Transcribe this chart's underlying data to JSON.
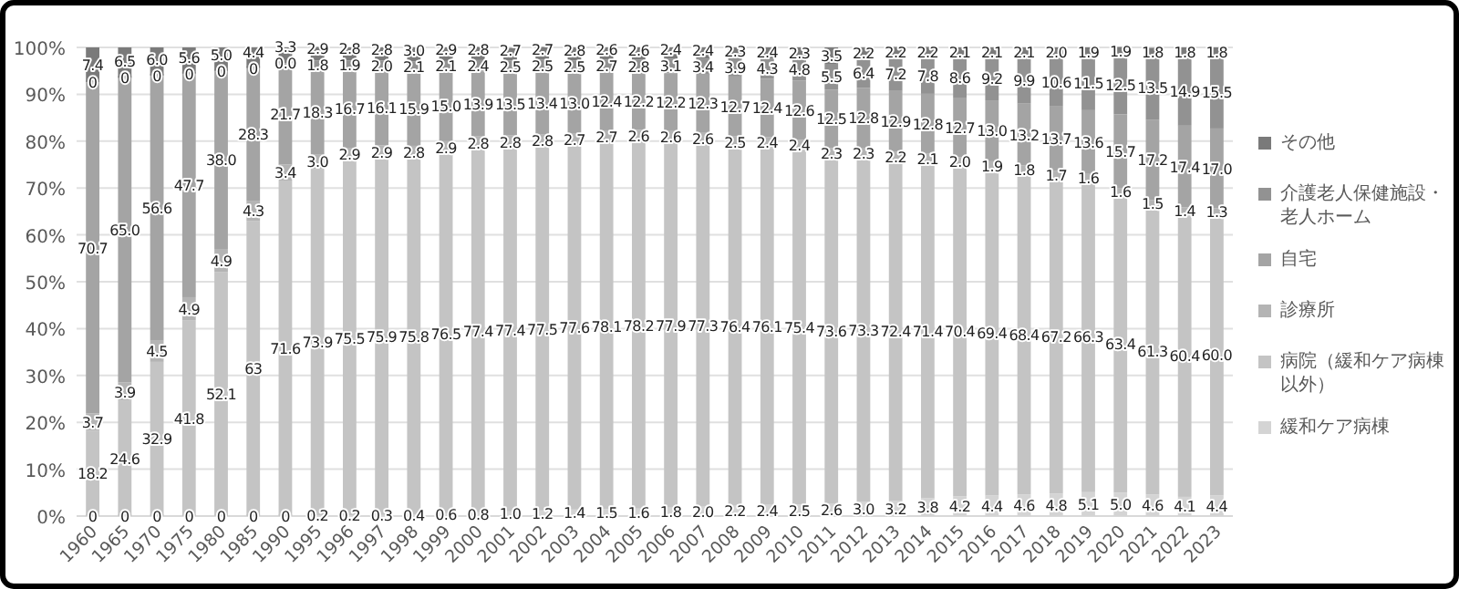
{
  "chart_data": {
    "type": "bar",
    "stacked": true,
    "grid": "y",
    "legend": "right",
    "categories": [
      "1960",
      "1965",
      "1970",
      "1975",
      "1980",
      "1985",
      "1990",
      "1995",
      "1996",
      "1997",
      "1998",
      "1999",
      "2000",
      "2001",
      "2002",
      "2003",
      "2004",
      "2005",
      "2006",
      "2007",
      "2008",
      "2009",
      "2010",
      "2011",
      "2012",
      "2013",
      "2014",
      "2015",
      "2016",
      "2017",
      "2018",
      "2019",
      "2020",
      "2021",
      "2022",
      "2023"
    ],
    "ylim": [
      0,
      100
    ],
    "yticks": [
      {
        "value": 0,
        "label": "0%"
      },
      {
        "value": 10,
        "label": "10%"
      },
      {
        "value": 20,
        "label": "20%"
      },
      {
        "value": 30,
        "label": "30%"
      },
      {
        "value": 40,
        "label": "40%"
      },
      {
        "value": 50,
        "label": "50%"
      },
      {
        "value": 60,
        "label": "60%"
      },
      {
        "value": 70,
        "label": "70%"
      },
      {
        "value": 80,
        "label": "80%"
      },
      {
        "value": 90,
        "label": "90%"
      },
      {
        "value": 100,
        "label": "100%"
      }
    ],
    "series": [
      {
        "name": "緩和ケア病棟",
        "color": "#d4d4d4",
        "values": [
          0,
          0,
          0,
          0,
          0,
          0,
          0,
          0.2,
          0.2,
          0.3,
          0.4,
          0.6,
          0.8,
          1.0,
          1.2,
          1.4,
          1.5,
          1.6,
          1.8,
          2.0,
          2.2,
          2.4,
          2.5,
          2.6,
          3.0,
          3.2,
          3.8,
          4.2,
          4.4,
          4.6,
          4.8,
          5.1,
          5.0,
          4.6,
          4.1,
          4.4
        ],
        "value_labels": [
          "0",
          "0",
          "0",
          "0",
          "0",
          "0",
          "0",
          "0.2",
          "0.2",
          "0.3",
          "0.4",
          "0.6",
          "0.8",
          "1.0",
          "1.2",
          "1.4",
          "1.5",
          "1.6",
          "1.8",
          "2.0",
          "2.2",
          "2.4",
          "2.5",
          "2.6",
          "3.0",
          "3.2",
          "3.8",
          "4.2",
          "4.4",
          "4.6",
          "4.8",
          "5.1",
          "5.0",
          "4.6",
          "4.1",
          "4.4"
        ]
      },
      {
        "name": "病院（緩和ケア病棟以外）",
        "color": "#c4c4c4",
        "values": [
          18.2,
          24.6,
          32.9,
          41.8,
          52.1,
          63,
          71.6,
          73.9,
          75.5,
          75.9,
          75.8,
          76.5,
          77.4,
          77.4,
          77.5,
          77.6,
          78.1,
          78.2,
          77.9,
          77.3,
          76.4,
          76.1,
          75.4,
          73.6,
          73.3,
          72.4,
          71.4,
          70.4,
          69.4,
          68.4,
          67.2,
          66.3,
          63.4,
          61.3,
          60.4,
          60.0
        ],
        "value_labels": [
          "18.2",
          "24.6",
          "32.9",
          "41.8",
          "52.1",
          "63",
          "71.6",
          "73.9",
          "75.5",
          "75.9",
          "75.8",
          "76.5",
          "77.4",
          "77.4",
          "77.5",
          "77.6",
          "78.1",
          "78.2",
          "77.9",
          "77.3",
          "76.4",
          "76.1",
          "75.4",
          "73.6",
          "73.3",
          "72.4",
          "71.4",
          "70.4",
          "69.4",
          "68.4",
          "67.2",
          "66.3",
          "63.4",
          "61.3",
          "60.4",
          "60.0"
        ]
      },
      {
        "name": "診療所",
        "color": "#b4b4b4",
        "values": [
          3.7,
          3.9,
          4.5,
          4.9,
          4.9,
          4.3,
          3.4,
          3.0,
          2.9,
          2.9,
          2.8,
          2.9,
          2.8,
          2.8,
          2.8,
          2.7,
          2.7,
          2.6,
          2.6,
          2.6,
          2.5,
          2.4,
          2.4,
          2.3,
          2.3,
          2.2,
          2.1,
          2.0,
          1.9,
          1.8,
          1.7,
          1.6,
          1.6,
          1.5,
          1.4,
          1.3
        ],
        "value_labels": [
          "3.7",
          "3.9",
          "4.5",
          "4.9",
          "4.9",
          "4.3",
          "3.4",
          "3.0",
          "2.9",
          "2.9",
          "2.8",
          "2.9",
          "2.8",
          "2.8",
          "2.8",
          "2.7",
          "2.7",
          "2.6",
          "2.6",
          "2.6",
          "2.5",
          "2.4",
          "2.4",
          "2.3",
          "2.3",
          "2.2",
          "2.1",
          "2.0",
          "1.9",
          "1.8",
          "1.7",
          "1.6",
          "1.6",
          "1.5",
          "1.4",
          "1.3"
        ]
      },
      {
        "name": "自宅",
        "color": "#a4a4a4",
        "values": [
          70.7,
          65.0,
          56.6,
          47.7,
          38.0,
          28.3,
          21.7,
          18.3,
          16.7,
          16.1,
          15.9,
          15.0,
          13.9,
          13.5,
          13.4,
          13.0,
          12.4,
          12.2,
          12.2,
          12.3,
          12.7,
          12.4,
          12.6,
          12.5,
          12.8,
          12.9,
          12.8,
          12.7,
          13.0,
          13.2,
          13.7,
          13.6,
          15.7,
          17.2,
          17.4,
          17.0
        ],
        "value_labels": [
          "70.7",
          "65.0",
          "56.6",
          "47.7",
          "38.0",
          "28.3",
          "21.7",
          "18.3",
          "16.7",
          "16.1",
          "15.9",
          "15.0",
          "13.9",
          "13.5",
          "13.4",
          "13.0",
          "12.4",
          "12.2",
          "12.2",
          "12.3",
          "12.7",
          "12.4",
          "12.6",
          "12.5",
          "12.8",
          "12.9",
          "12.8",
          "12.7",
          "13.0",
          "13.2",
          "13.7",
          "13.6",
          "15.7",
          "17.2",
          "17.4",
          "17.0"
        ]
      },
      {
        "name": "介護老人保健施設・老人ホーム",
        "color": "#929292",
        "values": [
          0,
          0,
          0,
          0,
          0,
          0,
          0,
          1.8,
          1.9,
          2.0,
          2.1,
          2.1,
          2.4,
          2.5,
          2.5,
          2.5,
          2.7,
          2.8,
          3.1,
          3.4,
          3.9,
          4.3,
          4.8,
          5.5,
          6.4,
          7.2,
          7.8,
          8.6,
          9.2,
          9.9,
          10.6,
          11.5,
          12.5,
          13.5,
          14.9,
          15.5
        ],
        "value_labels": [
          "0",
          "0",
          "0",
          "0",
          "0",
          "0",
          "0.0",
          "1.8",
          "1.9",
          "2.0",
          "2.1",
          "2.1",
          "2.4",
          "2.5",
          "2.5",
          "2.5",
          "2.7",
          "2.8",
          "3.1",
          "3.4",
          "3.9",
          "4.3",
          "4.8",
          "5.5",
          "6.4",
          "7.2",
          "7.8",
          "8.6",
          "9.2",
          "9.9",
          "10.6",
          "11.5",
          "12.5",
          "13.5",
          "14.9",
          "15.5"
        ]
      },
      {
        "name": "その他",
        "color": "#7a7a7a",
        "values": [
          7.4,
          6.5,
          6.0,
          5.6,
          5.0,
          4.4,
          3.3,
          2.9,
          2.8,
          2.8,
          3.0,
          2.9,
          2.8,
          2.7,
          2.7,
          2.8,
          2.6,
          2.6,
          2.4,
          2.4,
          2.3,
          2.4,
          2.3,
          3.5,
          2.2,
          2.2,
          2.2,
          2.1,
          2.1,
          2.1,
          2.0,
          1.9,
          1.9,
          1.8,
          1.8,
          1.8
        ],
        "value_labels": [
          "7.4",
          "6.5",
          "6.0",
          "5.6",
          "5.0",
          "4.4",
          "3.3",
          "2.9",
          "2.8",
          "2.8",
          "3.0",
          "2.9",
          "2.8",
          "2.7",
          "2.7",
          "2.8",
          "2.6",
          "2.6",
          "2.4",
          "2.4",
          "2.3",
          "2.4",
          "2.3",
          "3.5",
          "2.2",
          "2.2",
          "2.2",
          "2.1",
          "2.1",
          "2.1",
          "2.0",
          "1.9",
          "1.9",
          "1.8",
          "1.8",
          "1.8"
        ]
      }
    ]
  }
}
